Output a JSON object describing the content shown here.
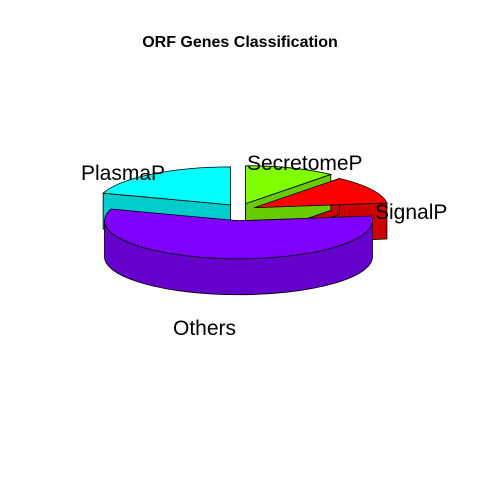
{
  "chart_data": {
    "type": "pie",
    "style": "3d-exploded",
    "title": "ORF Genes Classification",
    "categories": [
      "SecretomeP",
      "SignalP",
      "Others",
      "PlasmaP"
    ],
    "values": [
      11,
      12,
      57,
      20
    ],
    "colors": {
      "SecretomeP": {
        "top": "#80ff00",
        "side": "#66cc00"
      },
      "SignalP": {
        "top": "#ff0000",
        "side": "#cc0000"
      },
      "Others": {
        "top": "#8000ff",
        "side": "#6600cc"
      },
      "PlasmaP": {
        "top": "#00ffff",
        "side": "#00cccc"
      }
    }
  }
}
